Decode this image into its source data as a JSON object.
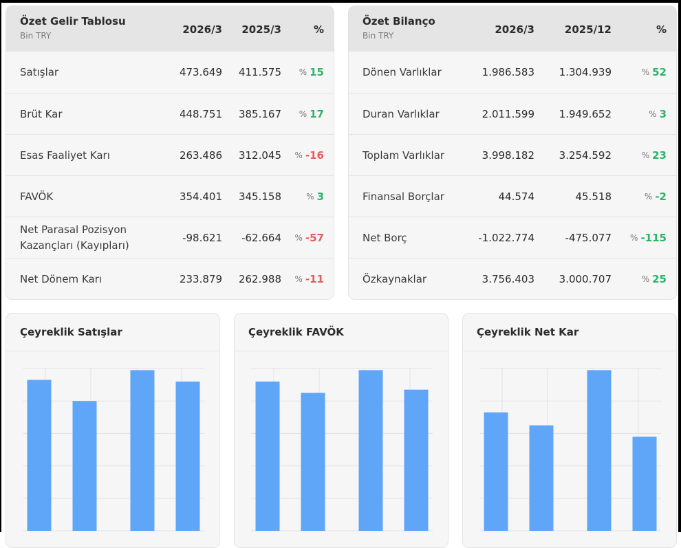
{
  "income": {
    "title": "Özet Gelir Tablosu",
    "unit": "Bin TRY",
    "col1": "2026/3",
    "col2": "2025/3",
    "col3": "%",
    "rows": [
      {
        "label": "Satışlar",
        "v1": "473.649",
        "v2": "411.575",
        "pct_sign": "%",
        "pct": "15",
        "trend": "pos"
      },
      {
        "label": "Brüt Kar",
        "v1": "448.751",
        "v2": "385.167",
        "pct_sign": "%",
        "pct": "17",
        "trend": "pos"
      },
      {
        "label": "Esas Faaliyet Karı",
        "v1": "263.486",
        "v2": "312.045",
        "pct_sign": "%",
        "pct": "-16",
        "trend": "neg"
      },
      {
        "label": "FAVÖK",
        "v1": "354.401",
        "v2": "345.158",
        "pct_sign": "%",
        "pct": "3",
        "trend": "pos"
      },
      {
        "label": "Net Parasal Pozisyon Kazançları (Kayıpları)",
        "v1": "-98.621",
        "v2": "-62.664",
        "pct_sign": "%",
        "pct": "-57",
        "trend": "neg"
      },
      {
        "label": "Net Dönem Karı",
        "v1": "233.879",
        "v2": "262.988",
        "pct_sign": "%",
        "pct": "-11",
        "trend": "neg"
      }
    ]
  },
  "balance": {
    "title": "Özet Bilanço",
    "unit": "Bin TRY",
    "col1": "2026/3",
    "col2": "2025/12",
    "col3": "%",
    "rows": [
      {
        "label": "Dönen Varlıklar",
        "v1": "1.986.583",
        "v2": "1.304.939",
        "pct_sign": "%",
        "pct": "52",
        "trend": "pos"
      },
      {
        "label": "Duran Varlıklar",
        "v1": "2.011.599",
        "v2": "1.949.652",
        "pct_sign": "%",
        "pct": "3",
        "trend": "pos"
      },
      {
        "label": "Toplam Varlıklar",
        "v1": "3.998.182",
        "v2": "3.254.592",
        "pct_sign": "%",
        "pct": "23",
        "trend": "pos"
      },
      {
        "label": "Finansal Borçlar",
        "v1": "44.574",
        "v2": "45.518",
        "pct_sign": "%",
        "pct": "-2",
        "trend": "pos"
      },
      {
        "label": "Net Borç",
        "v1": "-1.022.774",
        "v2": "-475.077",
        "pct_sign": "%",
        "pct": "-115",
        "trend": "pos"
      },
      {
        "label": "Özkaynaklar",
        "v1": "3.756.403",
        "v2": "3.000.707",
        "pct_sign": "%",
        "pct": "25",
        "trend": "pos"
      }
    ]
  },
  "colors": {
    "bar": "#5fa6f8",
    "positive": "#2ab567",
    "negative": "#e85b5b",
    "grid": "#e2e2e2"
  },
  "chart_data": [
    {
      "type": "bar",
      "title": "Çeyreklik Satışlar",
      "series": [
        {
          "values": [
            93,
            80,
            99,
            92
          ]
        }
      ],
      "ylim": [
        0,
        100
      ],
      "grid": true
    },
    {
      "type": "bar",
      "title": "Çeyreklik FAVÖK",
      "series": [
        {
          "values": [
            92,
            85,
            99,
            87
          ]
        }
      ],
      "ylim": [
        0,
        100
      ],
      "grid": true
    },
    {
      "type": "bar",
      "title": "Çeyreklik Net Kar",
      "series": [
        {
          "values": [
            73,
            65,
            99,
            58
          ]
        }
      ],
      "ylim": [
        0,
        100
      ],
      "grid": true
    }
  ]
}
